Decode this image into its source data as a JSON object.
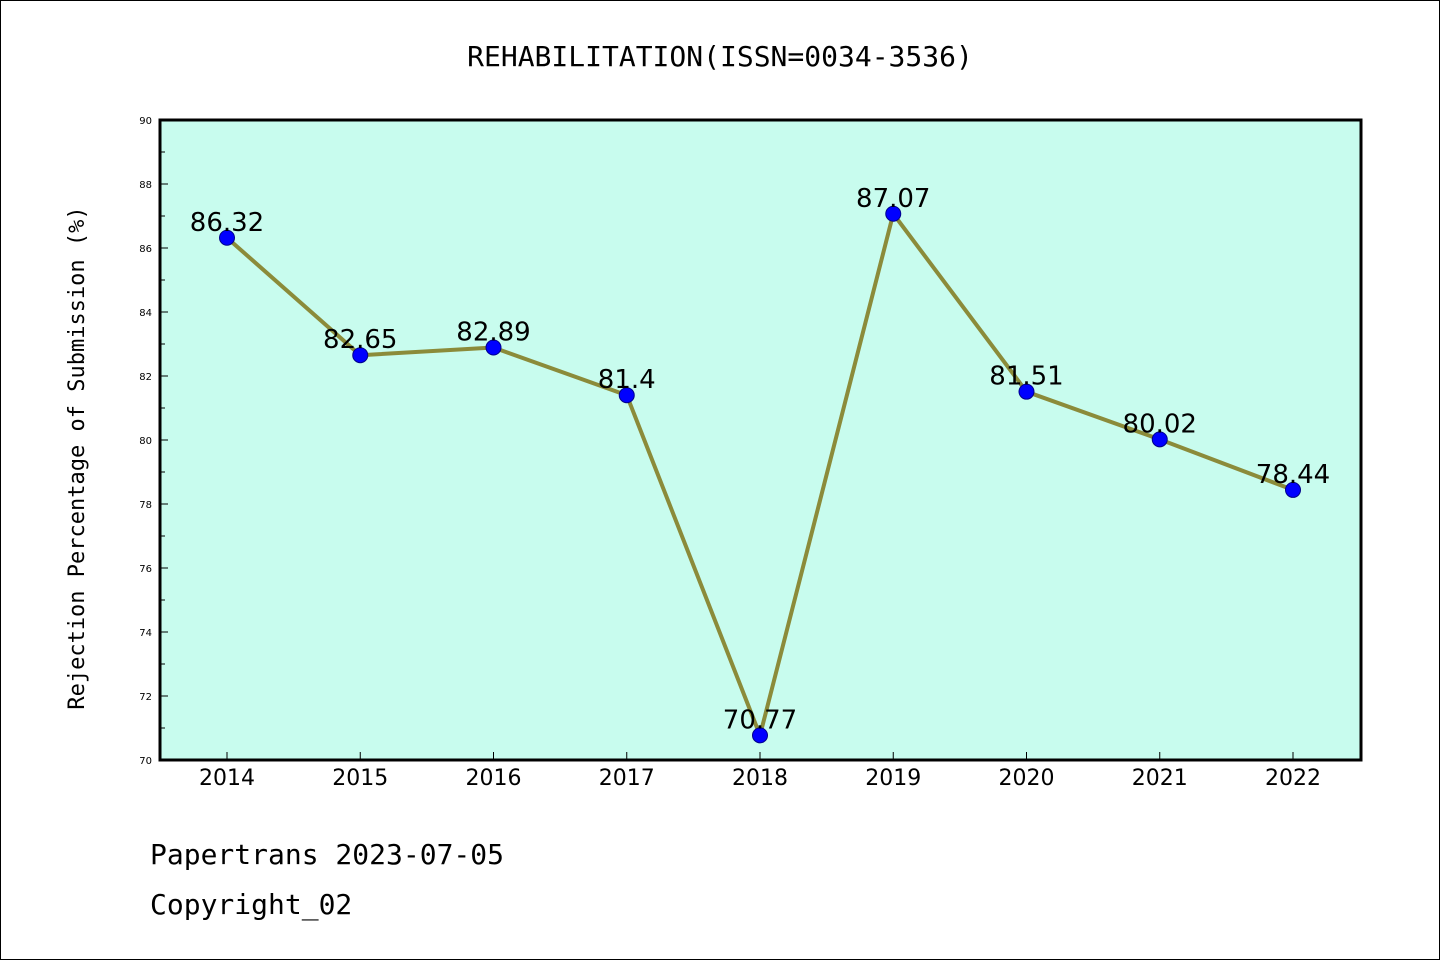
{
  "chart_data": {
    "type": "line",
    "title": "REHABILITATION(ISSN=0034-3536)",
    "xlabel": "",
    "ylabel": "Rejection Percentage of Submission (%)",
    "categories": [
      "2014",
      "2015",
      "2016",
      "2017",
      "2018",
      "2019",
      "2020",
      "2021",
      "2022"
    ],
    "series": [
      {
        "values": [
          86.32,
          82.65,
          82.89,
          81.4,
          70.77,
          87.07,
          81.51,
          80.02,
          78.44
        ],
        "labels": [
          "86.32",
          "82.65",
          "82.89",
          "81.4",
          "70.77",
          "87.07",
          "81.51",
          "80.02",
          "78.44"
        ],
        "line_color": "#8b8b3a",
        "marker_color": "#0000ff"
      }
    ],
    "ylim": [
      70,
      90
    ],
    "yticks": [
      "70",
      "72",
      "74",
      "76",
      "78",
      "80",
      "82",
      "84",
      "86",
      "88",
      "90"
    ],
    "plot_background": "#c8fcee",
    "grid": false,
    "legend": "none"
  },
  "footer": {
    "line1": "Papertrans 2023-07-05",
    "line2": "Copyright_02"
  }
}
